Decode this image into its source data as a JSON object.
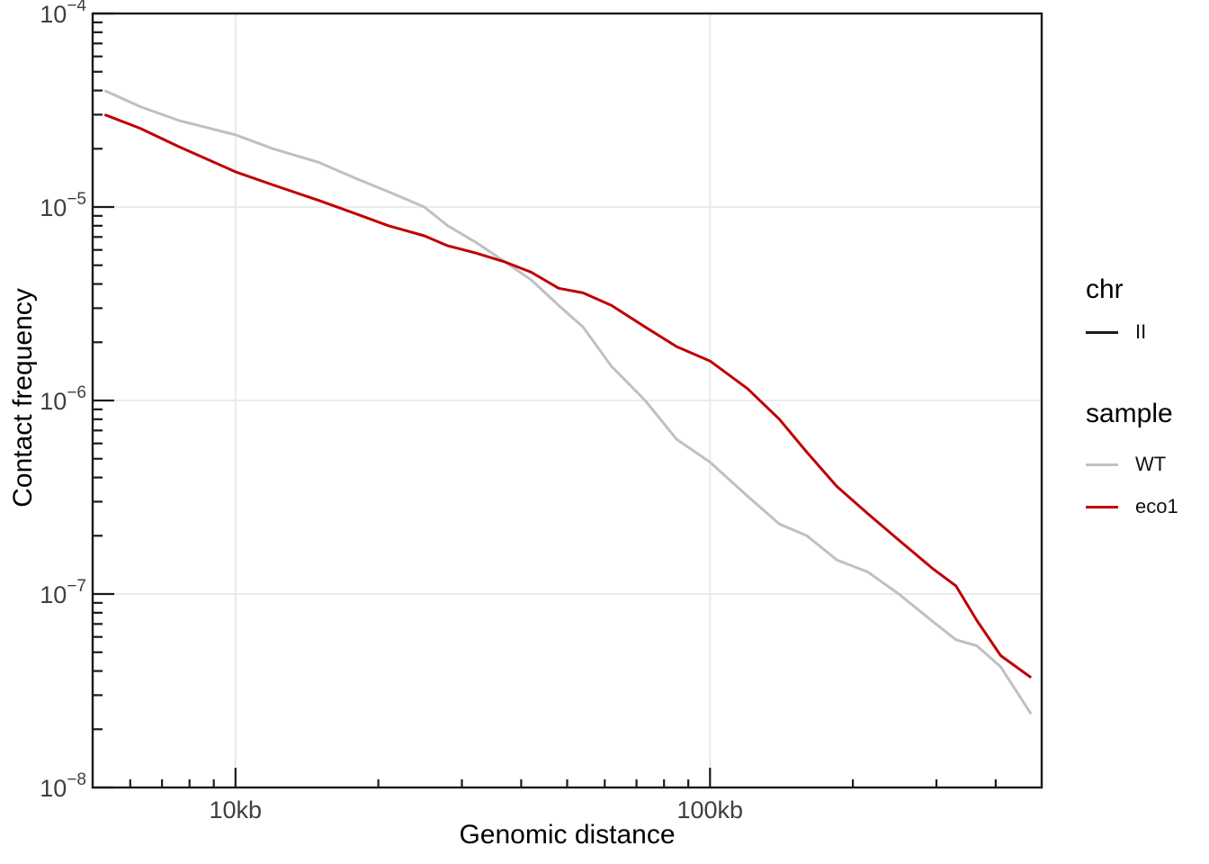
{
  "figure": {
    "background": "#ffffff",
    "panel_border_color": "#1a1a1a",
    "gridline_color": "#e8e8e8",
    "tick_color": "#1a1a1a",
    "tick_label_color": "#3f3f3f"
  },
  "axes": {
    "x": {
      "title": "Genomic distance",
      "scale": "log",
      "unit": "kb",
      "major_ticks": [
        {
          "value": 10,
          "label": "10kb"
        },
        {
          "value": 100,
          "label": "100kb"
        }
      ],
      "minor_ticks": [
        6,
        7,
        8,
        9,
        20,
        30,
        40,
        50,
        60,
        70,
        80,
        90,
        200,
        300,
        400
      ]
    },
    "y": {
      "title": "Contact frequency",
      "scale": "log",
      "major_tick_exponents": [
        -4,
        -5,
        -6,
        -7,
        -8
      ]
    }
  },
  "legend": {
    "groups": [
      {
        "title": "chr",
        "items": [
          {
            "label": "II",
            "color": "#1a1a1a"
          }
        ]
      },
      {
        "title": "sample",
        "items": [
          {
            "label": "WT",
            "color": "#c0c0c0"
          },
          {
            "label": "eco1",
            "color": "#c00000"
          }
        ]
      }
    ]
  },
  "chart_data": {
    "type": "line",
    "title": "",
    "xlabel": "Genomic distance",
    "ylabel": "Contact frequency",
    "x_scale": "log",
    "y_scale": "log",
    "xlim": [
      5,
      500
    ],
    "ylim": [
      1e-08,
      0.0001
    ],
    "x_unit": "kb",
    "grid": "major-only",
    "legend_position": "right",
    "x_kb": [
      5.3,
      6.3,
      7.6,
      10,
      12,
      15,
      18,
      21,
      25,
      28,
      32,
      37,
      42,
      48,
      54,
      62,
      73,
      85,
      100,
      120,
      140,
      160,
      185,
      215,
      250,
      295,
      330,
      365,
      410,
      475
    ],
    "series": [
      {
        "name": "WT",
        "color": "#c0c0c0",
        "values": [
          4e-05,
          3.3e-05,
          2.8e-05,
          2.36e-05,
          2e-05,
          1.7e-05,
          1.4e-05,
          1.2e-05,
          1e-05,
          8e-06,
          6.6e-06,
          5.2e-06,
          4.2e-06,
          3.1e-06,
          2.4e-06,
          1.5e-06,
          1e-06,
          6.3e-07,
          4.8e-07,
          3.2e-07,
          2.3e-07,
          2e-07,
          1.5e-07,
          1.3e-07,
          1e-07,
          7.2e-08,
          5.8e-08,
          5.4e-08,
          4.2e-08,
          2.4e-08
        ]
      },
      {
        "name": "eco1",
        "color": "#c00000",
        "values": [
          3e-05,
          2.55e-05,
          2.05e-05,
          1.52e-05,
          1.3e-05,
          1.08e-05,
          9.2e-06,
          8e-06,
          7.1e-06,
          6.3e-06,
          5.8e-06,
          5.2e-06,
          4.6e-06,
          3.8e-06,
          3.6e-06,
          3.1e-06,
          2.4e-06,
          1.9e-06,
          1.6e-06,
          1.15e-06,
          8e-07,
          5.4e-07,
          3.6e-07,
          2.6e-07,
          1.9e-07,
          1.35e-07,
          1.1e-07,
          7.3e-08,
          4.8e-08,
          3.7e-08
        ]
      }
    ]
  }
}
